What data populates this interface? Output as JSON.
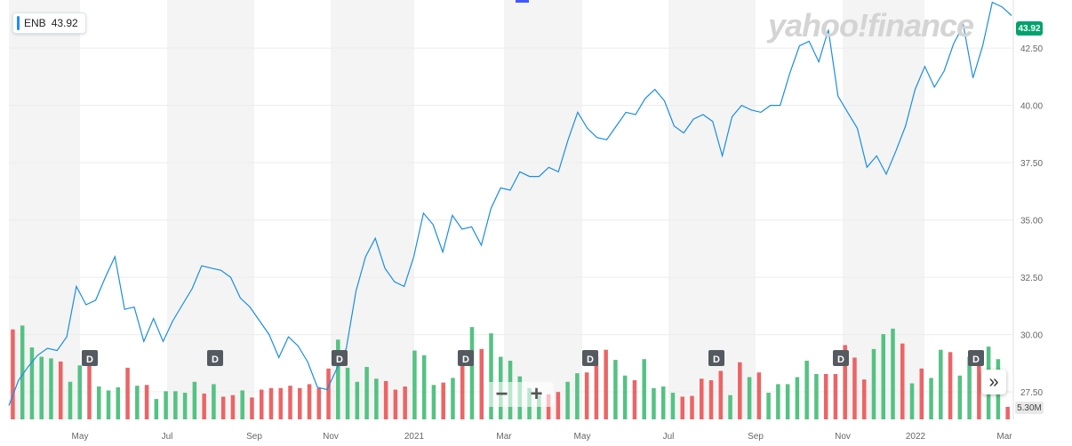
{
  "ticker": {
    "symbol": "ENB",
    "price": "43.92"
  },
  "logo_text": "yahoo!finance",
  "price_badge": "43.92",
  "volume_label": "5.30M",
  "zoom": {
    "minus": "−",
    "plus": "+"
  },
  "expand_label": "»",
  "colors": {
    "line": "#1a8ee0",
    "up": "#54c283",
    "down": "#ec6466",
    "badge": "#00a36c",
    "band": "#f4f4f4",
    "dividend": "#555a61",
    "accent": "#1e8cff",
    "handle": "#4257ff"
  },
  "chart_data": {
    "type": "line",
    "x_tick_labels": [
      "May",
      "Jul",
      "Sep",
      "Nov",
      "2021",
      "Mar",
      "May",
      "Jul",
      "Sep",
      "Nov",
      "2022",
      "Mar"
    ],
    "y_tick_labels": [
      "42.50",
      "40.00",
      "37.50",
      "35.00",
      "32.50",
      "30.00",
      "27.50"
    ],
    "ylim": [
      26.3,
      44.6
    ],
    "grid": true,
    "series": [
      {
        "values": [
          26.9,
          28.0,
          28.6,
          29.1,
          29.4,
          29.3,
          29.9,
          32.1,
          31.3,
          31.5,
          32.5,
          33.4,
          31.1,
          31.2,
          29.7,
          30.7,
          29.7,
          30.6,
          31.3,
          32.0,
          33.0,
          32.9,
          32.8,
          32.5,
          31.6,
          31.2,
          30.6,
          30.0,
          29.0,
          29.9,
          29.5,
          28.8,
          27.7,
          27.6,
          28.5,
          29.4,
          31.9,
          33.4,
          34.2,
          32.9,
          32.3,
          32.1,
          33.4,
          35.3,
          34.8,
          33.6,
          35.2,
          34.6,
          34.7,
          33.9,
          35.5,
          36.4,
          36.3,
          37.1,
          36.9,
          36.9,
          37.3,
          37.1,
          38.5,
          39.7,
          39.0,
          38.6,
          38.5,
          39.1,
          39.7,
          39.6,
          40.3,
          40.7,
          40.2,
          39.1,
          38.8,
          39.4,
          39.6,
          39.3,
          37.8,
          39.5,
          40.0,
          39.8,
          39.7,
          40.0,
          40.0,
          41.4,
          42.6,
          42.8,
          41.9,
          43.3,
          40.4,
          39.7,
          39.0,
          37.3,
          37.8,
          37.0,
          38.0,
          39.1,
          40.7,
          41.7,
          40.8,
          41.5,
          42.7,
          43.5,
          41.2,
          42.6,
          44.5,
          44.3,
          43.92
        ]
      }
    ],
    "volume": {
      "direction": [
        "d",
        "u",
        "u",
        "u",
        "u",
        "d",
        "u",
        "u",
        "d",
        "u",
        "u",
        "u",
        "d",
        "u",
        "d",
        "u",
        "u",
        "u",
        "u",
        "u",
        "d",
        "u",
        "d",
        "d",
        "u",
        "d",
        "d",
        "d",
        "d",
        "d",
        "d",
        "d",
        "d",
        "d",
        "u",
        "u",
        "u",
        "u",
        "u",
        "d",
        "d",
        "d",
        "u",
        "u",
        "u",
        "d",
        "u",
        "d",
        "u",
        "d",
        "u",
        "u",
        "u",
        "u",
        "u",
        "u",
        "d",
        "d",
        "u",
        "u",
        "d",
        "d",
        "d",
        "u",
        "u",
        "d",
        "u",
        "u",
        "u",
        "u",
        "d",
        "d",
        "d",
        "d",
        "d",
        "u",
        "d",
        "u",
        "d",
        "u",
        "u",
        "u",
        "u",
        "u",
        "u",
        "d",
        "d",
        "d",
        "d",
        "d",
        "u",
        "u",
        "u",
        "d",
        "u",
        "d",
        "u",
        "u",
        "d",
        "u",
        "u",
        "d",
        "u",
        "u",
        "d"
      ],
      "values": [
        11.5,
        12.0,
        9.2,
        8.0,
        7.8,
        7.4,
        4.8,
        6.9,
        7.7,
        4.2,
        3.7,
        4.1,
        6.6,
        4.3,
        4.4,
        2.6,
        3.6,
        3.6,
        3.4,
        4.8,
        3.3,
        4.5,
        2.9,
        3.1,
        3.7,
        2.8,
        3.8,
        4.0,
        4.0,
        4.3,
        4.0,
        4.5,
        4.0,
        6.5,
        10.2,
        6.6,
        4.8,
        6.7,
        5.2,
        4.9,
        3.8,
        4.2,
        8.8,
        8.2,
        4.4,
        4.7,
        5.3,
        7.2,
        11.8,
        9.0,
        11.0,
        8.0,
        7.5,
        5.5,
        4.0,
        3.1,
        3.2,
        3.5,
        4.8,
        5.9,
        6.0,
        8.0,
        8.9,
        7.6,
        5.6,
        5.0,
        7.7,
        4.0,
        4.2,
        3.4,
        2.9,
        3.0,
        5.2,
        5.0,
        6.2,
        3.1,
        7.3,
        5.4,
        6.0,
        3.4,
        4.5,
        4.5,
        5.4,
        7.5,
        5.8,
        5.8,
        5.8,
        9.5,
        7.9,
        5.1,
        9.0,
        10.9,
        11.6,
        9.7,
        4.6,
        6.5,
        5.3,
        8.9,
        8.6,
        5.6,
        8.0,
        8.7,
        9.3,
        7.7,
        1.6
      ],
      "unit": "M"
    },
    "dividend_label": "D",
    "dividend_count": 8
  }
}
